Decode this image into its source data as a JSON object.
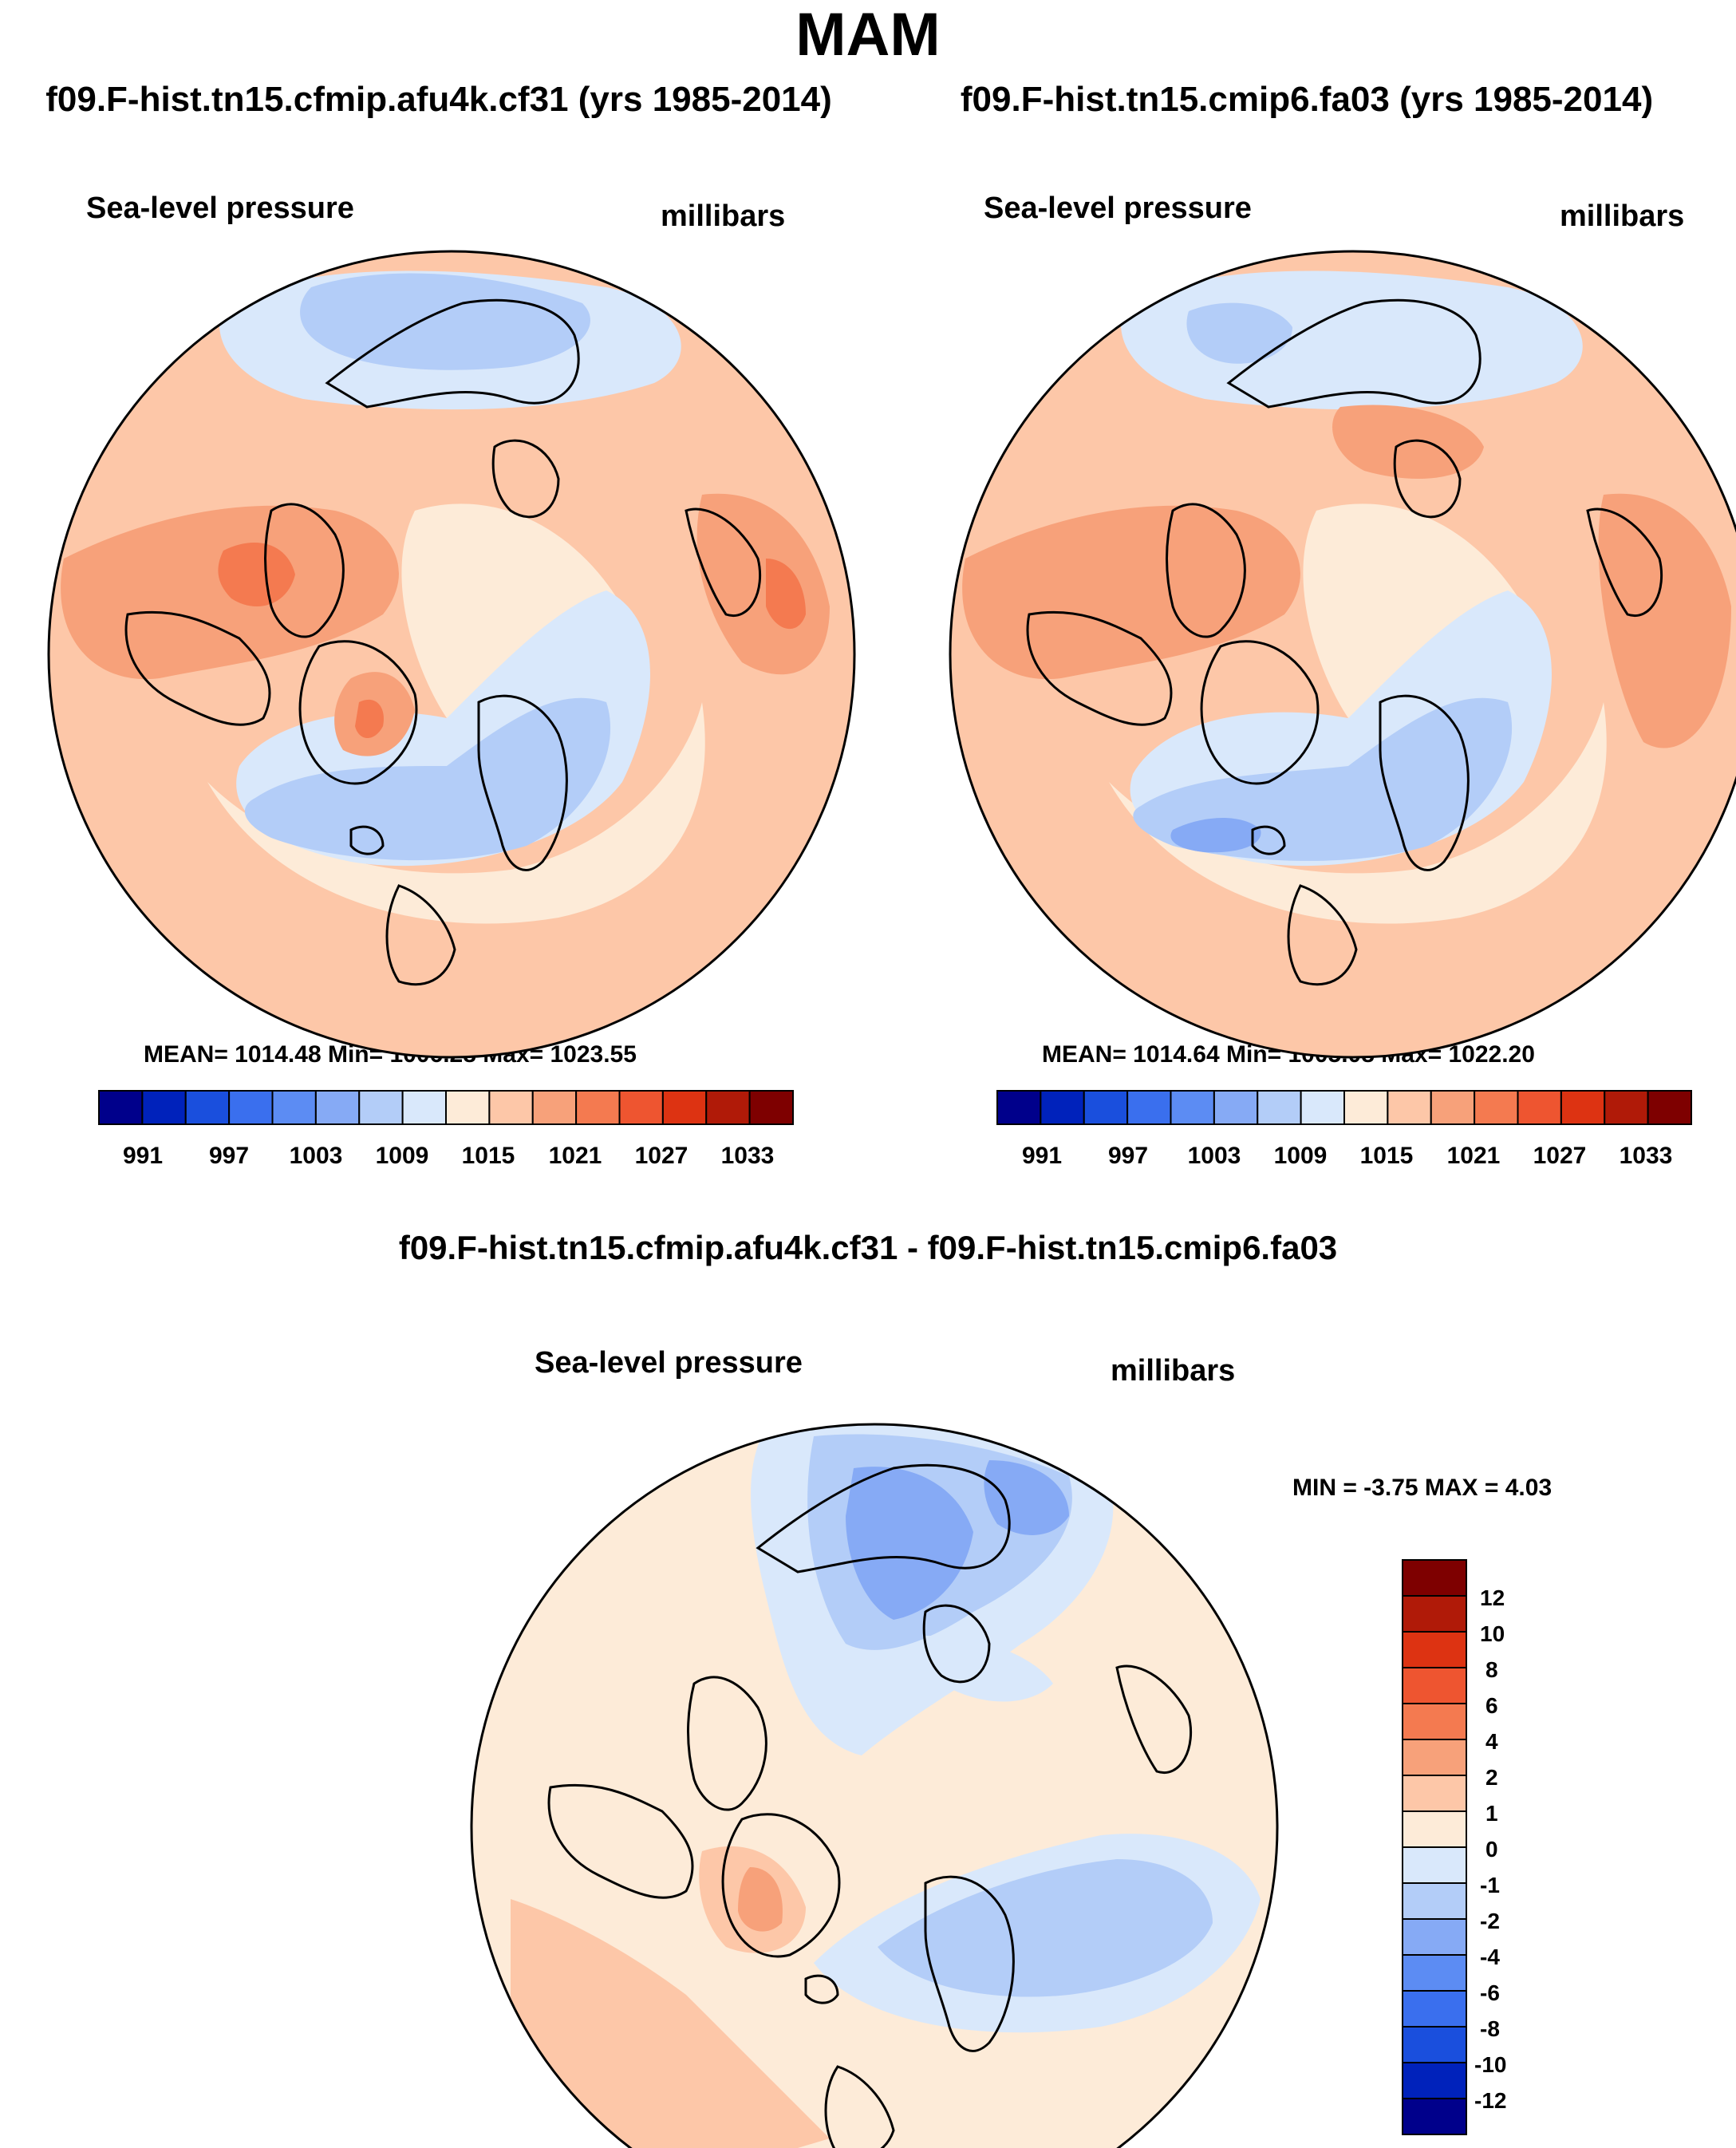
{
  "title": "MAM",
  "left_panel": {
    "run_title": "f09.F-hist.tn15.cfmip.afu4k.cf31 (yrs 1985-2014)",
    "variable": "Sea-level pressure",
    "units": "millibars",
    "stats": "MEAN= 1014.48  Min= 1006.28  Max= 1023.55"
  },
  "right_panel": {
    "run_title": "f09.F-hist.tn15.cmip6.fa03 (yrs 1985-2014)",
    "variable": "Sea-level pressure",
    "units": "millibars",
    "stats": "MEAN= 1014.64  Min= 1005.08  Max= 1022.20"
  },
  "diff_panel": {
    "title": "f09.F-hist.tn15.cfmip.afu4k.cf31 - f09.F-hist.tn15.cmip6.fa03",
    "variable": "Sea-level pressure",
    "units": "millibars",
    "stats": "MIN =  -3.75 MAX =   4.03"
  },
  "colorbar_abs": {
    "colors": [
      "#00008b",
      "#0022bb",
      "#1a4fdd",
      "#3a6fee",
      "#5c8cf3",
      "#86aaf5",
      "#b3cdf8",
      "#d9e8fb",
      "#fdebd8",
      "#fdc7a8",
      "#f7a17a",
      "#f47a50",
      "#ee5530",
      "#dd3312",
      "#b01a08",
      "#7e0000"
    ],
    "labels": [
      "991",
      "997",
      "1003",
      "1009",
      "1015",
      "1021",
      "1027",
      "1033"
    ]
  },
  "colorbar_diff": {
    "colors": [
      "#00008b",
      "#0022bb",
      "#1a4fdd",
      "#3a6fee",
      "#5c8cf3",
      "#86aaf5",
      "#b3cdf8",
      "#d9e8fb",
      "#fdebd8",
      "#fdc7a8",
      "#f7a17a",
      "#f47a50",
      "#ee5530",
      "#dd3312",
      "#b01a08",
      "#7e0000"
    ],
    "labels": [
      "12",
      "10",
      "8",
      "6",
      "4",
      "2",
      "1",
      "0",
      "-1",
      "-2",
      "-4",
      "-6",
      "-8",
      "-10",
      "-12"
    ]
  },
  "map_colors": {
    "neg1": "#d9e8fb",
    "neg2": "#b3cdf8",
    "neg3": "#86aaf5",
    "pos1": "#fdebd8",
    "pos2": "#fdc7a8",
    "pos3": "#f7a17a",
    "pos4": "#f47a50"
  }
}
